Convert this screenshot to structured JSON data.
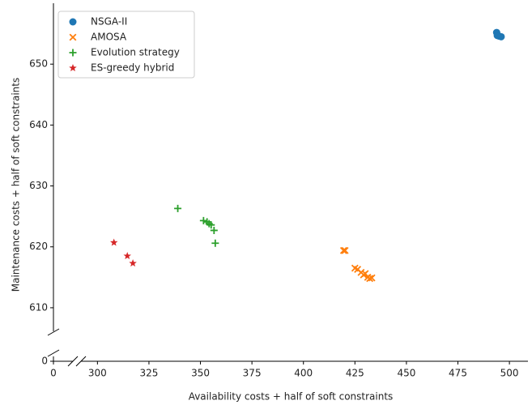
{
  "chart_data": {
    "type": "scatter",
    "x_label": "Availability costs + half of soft constraints",
    "y_label": "Maintenance costs + half of soft constraints",
    "xlim": [
      0,
      509
    ],
    "ylim": [
      0,
      660
    ],
    "broken_axes": {
      "x": [
        0,
        292
      ],
      "y": [
        0,
        606
      ]
    },
    "xticks": [
      0,
      300,
      325,
      350,
      375,
      400,
      425,
      450,
      475,
      500
    ],
    "yticks": [
      0,
      610,
      620,
      630,
      640,
      650
    ],
    "legend": "upper left",
    "series": [
      {
        "name": "NSGA-II",
        "color": "#1f77b4",
        "marker": "circle",
        "x": [
          493.8,
          494.1,
          495.0,
          496.0
        ],
        "values": [
          655.2,
          654.7,
          654.6,
          654.5
        ]
      },
      {
        "name": "AMOSA",
        "color": "#ff7f0e",
        "marker": "x",
        "x": [
          419.5,
          420.2,
          425.0,
          426.3,
          428.0,
          429.2,
          430.0,
          431.2,
          432.2,
          433.2
        ],
        "values": [
          619.4,
          619.4,
          616.5,
          616.3,
          615.8,
          615.4,
          615.6,
          615.0,
          614.8,
          614.9
        ]
      },
      {
        "name": "Evolution strategy",
        "color": "#2ca02c",
        "marker": "plus",
        "x": [
          339.0,
          351.5,
          353.2,
          354.2,
          355.2,
          356.6,
          357.2
        ],
        "values": [
          626.3,
          624.3,
          624.1,
          623.8,
          623.6,
          622.7,
          620.6
        ]
      },
      {
        "name": "ES-greedy hybrid",
        "color": "#d62728",
        "marker": "star",
        "x": [
          308.0,
          314.5,
          317.2
        ],
        "values": [
          620.7,
          618.5,
          617.3
        ]
      }
    ]
  }
}
